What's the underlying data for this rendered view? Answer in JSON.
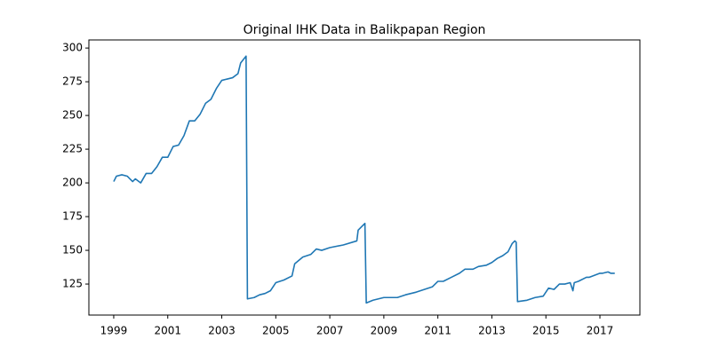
{
  "chart_data": {
    "type": "line",
    "title": "Original IHK Data in Balikpapan Region",
    "x": [
      1999.0,
      1999.1,
      1999.3,
      1999.5,
      1999.6,
      1999.7,
      1999.8,
      2000.0,
      2000.2,
      2000.4,
      2000.6,
      2000.8,
      2001.0,
      2001.2,
      2001.4,
      2001.6,
      2001.8,
      2002.0,
      2002.2,
      2002.4,
      2002.6,
      2002.8,
      2003.0,
      2003.2,
      2003.4,
      2003.6,
      2003.7,
      2003.9,
      2003.95,
      2004.2,
      2004.4,
      2004.6,
      2004.8,
      2005.0,
      2005.3,
      2005.6,
      2005.7,
      2006.0,
      2006.3,
      2006.5,
      2006.7,
      2007.0,
      2007.5,
      2008.0,
      2008.05,
      2008.3,
      2008.35,
      2008.6,
      2009.0,
      2009.5,
      2009.8,
      2010.2,
      2010.5,
      2010.8,
      2011.0,
      2011.2,
      2011.5,
      2011.8,
      2012.0,
      2012.3,
      2012.5,
      2012.8,
      2013.0,
      2013.2,
      2013.4,
      2013.6,
      2013.75,
      2013.85,
      2013.9,
      2013.95,
      2014.3,
      2014.6,
      2014.9,
      2015.1,
      2015.3,
      2015.5,
      2015.7,
      2015.9,
      2016.0,
      2016.05,
      2016.2,
      2016.5,
      2016.6,
      2017.0,
      2017.1,
      2017.3,
      2017.4,
      2017.55
    ],
    "series": [
      {
        "color": "#1f77b4",
        "values": [
          201,
          205,
          206,
          205,
          203,
          201,
          203,
          200,
          207,
          207,
          212,
          219,
          219,
          227,
          228,
          235,
          246,
          246,
          251,
          259,
          262,
          270,
          276,
          277,
          278,
          281,
          289,
          294,
          114,
          115,
          117,
          118,
          120,
          126,
          128,
          131,
          140,
          145,
          147,
          151,
          150,
          152,
          154,
          157,
          165,
          170,
          111,
          113,
          115,
          115,
          117,
          119,
          121,
          123,
          127,
          127,
          130,
          133,
          136,
          136,
          138,
          139,
          141,
          144,
          146,
          149,
          155,
          157,
          156,
          112,
          113,
          115,
          116,
          122,
          121,
          125,
          125,
          126,
          120,
          126,
          127,
          130,
          130,
          133,
          133,
          134,
          133,
          133
        ]
      }
    ],
    "xlim": [
      1998.08,
      2018.48
    ],
    "xticks": [
      1999,
      2001,
      2003,
      2005,
      2007,
      2009,
      2011,
      2013,
      2015,
      2017
    ],
    "ylim": [
      102,
      306
    ],
    "yticks": [
      125,
      150,
      175,
      200,
      225,
      250,
      275,
      300
    ]
  }
}
